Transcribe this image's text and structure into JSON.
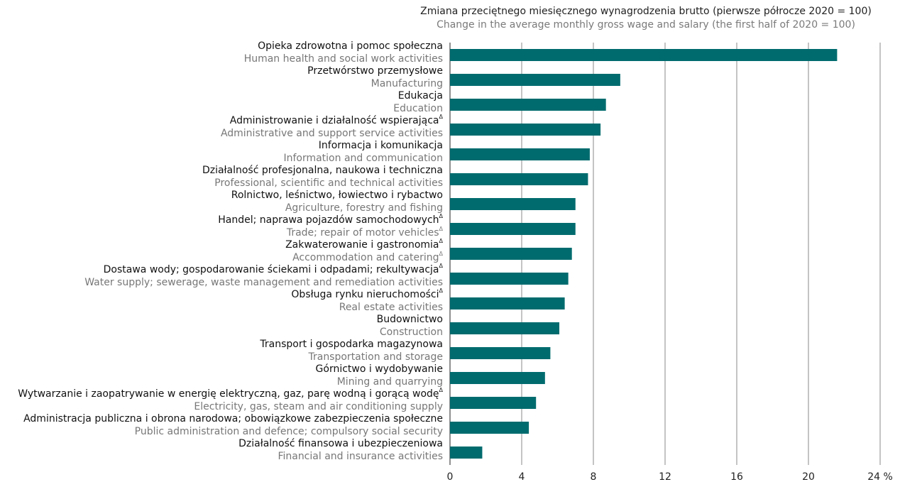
{
  "chart_data": {
    "type": "bar",
    "orientation": "horizontal",
    "title": "Zmiana przeciętnego miesięcznego wynagrodzenia brutto (pierwsze półrocze 2020 = 100)",
    "subtitle": "Change in the average monthly gross wage and salary (the first half of 2020 = 100)",
    "xlim": [
      0,
      24
    ],
    "x_ticks": [
      "0",
      "4",
      "8",
      "12",
      "16",
      "20",
      "24 %"
    ],
    "grid": "vertical",
    "bar_color": "#006b6e",
    "categories": [
      {
        "pl": "Opieka zdrowotna i pomoc społeczna",
        "en": "Human health and social work activities",
        "value": 21.6,
        "mark_pl": "",
        "mark_en": ""
      },
      {
        "pl": "Przetwórstwo przemysłowe",
        "en": "Manufacturing",
        "value": 9.5,
        "mark_pl": "",
        "mark_en": ""
      },
      {
        "pl": "Edukacja",
        "en": "Education",
        "value": 8.7,
        "mark_pl": "",
        "mark_en": ""
      },
      {
        "pl": "Administrowanie i działalność wspierająca",
        "en": "Administrative and support service activities",
        "value": 8.4,
        "mark_pl": "Δ",
        "mark_en": ""
      },
      {
        "pl": "Informacja i komunikacja",
        "en": "Information and communication",
        "value": 7.8,
        "mark_pl": "",
        "mark_en": ""
      },
      {
        "pl": "Działalność profesjonalna, naukowa i techniczna",
        "en": "Professional, scientific and technical activities",
        "value": 7.7,
        "mark_pl": "",
        "mark_en": ""
      },
      {
        "pl": "Rolnictwo, leśnictwo, łowiectwo i rybactwo",
        "en": "Agriculture, forestry and fishing",
        "value": 7.0,
        "mark_pl": "",
        "mark_en": ""
      },
      {
        "pl": "Handel; naprawa pojazdów samochodowych",
        "en": "Trade; repair of motor vehicles",
        "value": 7.0,
        "mark_pl": "Δ",
        "mark_en": "Δ"
      },
      {
        "pl": "Zakwaterowanie i gastronomia",
        "en": "Accommodation and catering",
        "value": 6.8,
        "mark_pl": "Δ",
        "mark_en": "Δ"
      },
      {
        "pl": "Dostawa wody; gospodarowanie ściekami i odpadami; rekultywacja",
        "en": "Water supply; sewerage, waste management and remediation activities",
        "value": 6.6,
        "mark_pl": "Δ",
        "mark_en": ""
      },
      {
        "pl": "Obsługa rynku nieruchomości",
        "en": "Real estate activities",
        "value": 6.4,
        "mark_pl": "Δ",
        "mark_en": ""
      },
      {
        "pl": "Budownictwo",
        "en": "Construction",
        "value": 6.1,
        "mark_pl": "",
        "mark_en": ""
      },
      {
        "pl": "Transport i gospodarka magazynowa",
        "en": "Transportation and storage",
        "value": 5.6,
        "mark_pl": "",
        "mark_en": ""
      },
      {
        "pl": "Górnictwo i wydobywanie",
        "en": "Mining and quarrying",
        "value": 5.3,
        "mark_pl": "",
        "mark_en": ""
      },
      {
        "pl": "Wytwarzanie i zaopatrywanie w energię elektryczną, gaz, parę wodną i gorącą wodę",
        "en": "Electricity, gas, steam and air conditioning supply",
        "value": 4.8,
        "mark_pl": "Δ",
        "mark_en": ""
      },
      {
        "pl": "Administracja publiczna i obrona narodowa; obowiązkowe zabezpieczenia społeczne",
        "en": "Public administration and defence; compulsory social security",
        "value": 4.4,
        "mark_pl": "",
        "mark_en": ""
      },
      {
        "pl": "Działalność finansowa i ubezpieczeniowa",
        "en": "Financial and insurance activities",
        "value": 1.8,
        "mark_pl": "",
        "mark_en": ""
      }
    ]
  }
}
